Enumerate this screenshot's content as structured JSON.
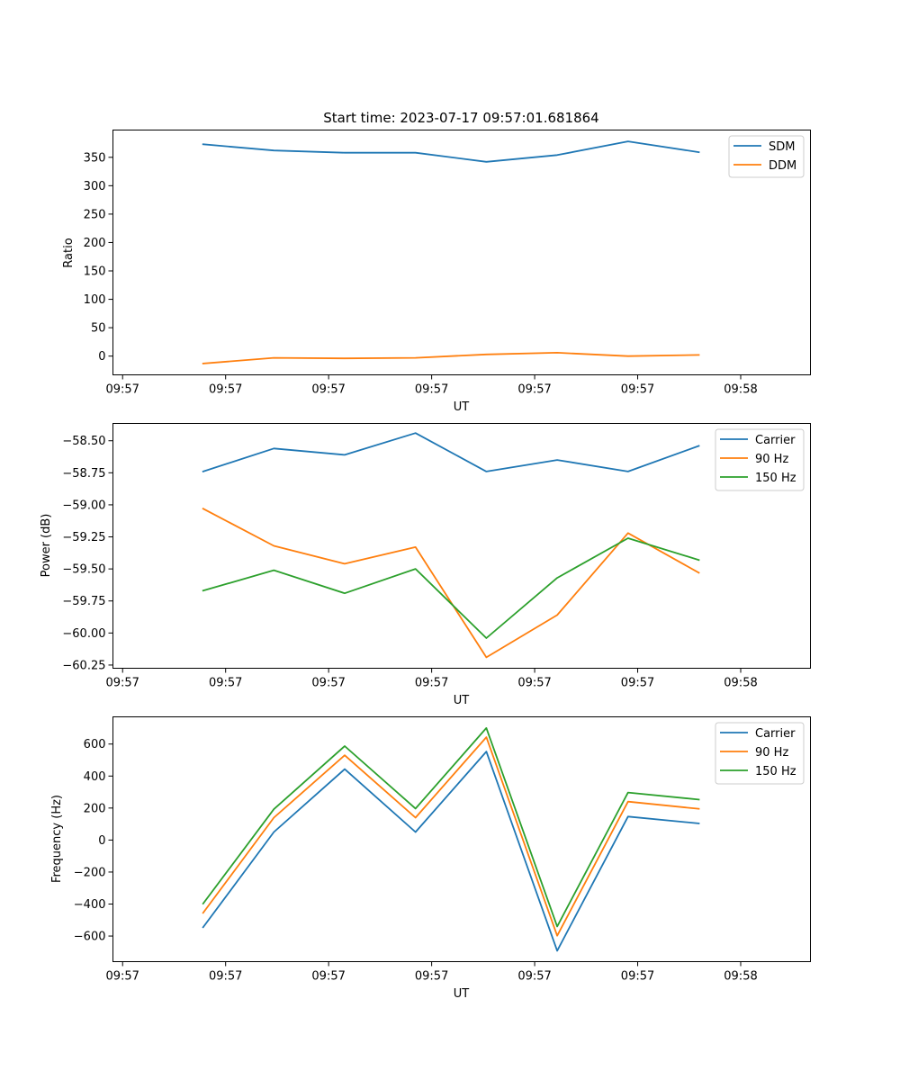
{
  "chart_data": [
    {
      "type": "line",
      "title": "Start time: 2023-07-17 09:57:01.681864",
      "xlabel": "UT",
      "ylabel": "Ratio",
      "x_tick_labels": [
        "09:57",
        "09:57",
        "09:57",
        "09:57",
        "09:57",
        "09:57",
        "09:58"
      ],
      "x": [
        0.49,
        1.15,
        1.81,
        2.47,
        3.13,
        3.79,
        4.45,
        5.11
      ],
      "xlim": [
        0,
        6
      ],
      "ylim": [
        -33,
        398
      ],
      "y_ticks": [
        0,
        50,
        100,
        150,
        200,
        250,
        300,
        350
      ],
      "legend_position": "top-right",
      "series": [
        {
          "name": "SDM",
          "color": "#1f77b4",
          "values": [
            373,
            362,
            358,
            358,
            342,
            354,
            378,
            359
          ]
        },
        {
          "name": "DDM",
          "color": "#ff7f0e",
          "values": [
            -13,
            -3,
            -4,
            -3,
            3,
            6,
            0,
            2
          ]
        }
      ]
    },
    {
      "type": "line",
      "title": "",
      "xlabel": "UT",
      "ylabel": "Power (dB)",
      "x_tick_labels": [
        "09:57",
        "09:57",
        "09:57",
        "09:57",
        "09:57",
        "09:57",
        "09:58"
      ],
      "x": [
        0.49,
        1.15,
        1.81,
        2.47,
        3.13,
        3.79,
        4.45,
        5.11
      ],
      "xlim": [
        0,
        6
      ],
      "ylim": [
        -60.275,
        -58.365
      ],
      "y_ticks": [
        -60.25,
        -60.0,
        -59.75,
        -59.5,
        -59.25,
        -59.0,
        -58.75,
        -58.5
      ],
      "y_tick_labels": [
        "−60.25",
        "−60.00",
        "−59.75",
        "−59.50",
        "−59.25",
        "−59.00",
        "−58.75",
        "−58.50"
      ],
      "legend_position": "top-right",
      "series": [
        {
          "name": "Carrier",
          "color": "#1f77b4",
          "values": [
            -58.74,
            -58.56,
            -58.61,
            -58.44,
            -58.74,
            -58.65,
            -58.74,
            -58.54
          ]
        },
        {
          "name": "90 Hz",
          "color": "#ff7f0e",
          "values": [
            -59.03,
            -59.32,
            -59.46,
            -59.33,
            -60.19,
            -59.86,
            -59.22,
            -59.53
          ]
        },
        {
          "name": "150 Hz",
          "color": "#2ca02c",
          "values": [
            -59.67,
            -59.51,
            -59.69,
            -59.5,
            -60.04,
            -59.57,
            -59.26,
            -59.43
          ]
        }
      ]
    },
    {
      "type": "line",
      "title": "",
      "xlabel": "UT",
      "ylabel": "Frequency (Hz)",
      "x_tick_labels": [
        "09:57",
        "09:57",
        "09:57",
        "09:57",
        "09:57",
        "09:57",
        "09:58"
      ],
      "x": [
        0.49,
        1.15,
        1.81,
        2.47,
        3.13,
        3.79,
        4.45,
        5.11
      ],
      "xlim": [
        0,
        6
      ],
      "ylim": [
        -760,
        770
      ],
      "y_ticks": [
        -600,
        -400,
        -200,
        0,
        200,
        400,
        600
      ],
      "y_tick_labels": [
        "−600",
        "−400",
        "−200",
        "0",
        "200",
        "400",
        "600"
      ],
      "legend_position": "top-right",
      "series": [
        {
          "name": "Carrier",
          "color": "#1f77b4",
          "values": [
            -545,
            50,
            443,
            50,
            553,
            -692,
            147,
            104
          ]
        },
        {
          "name": "90 Hz",
          "color": "#ff7f0e",
          "values": [
            -455,
            140,
            530,
            140,
            643,
            -598,
            240,
            195
          ]
        },
        {
          "name": "150 Hz",
          "color": "#2ca02c",
          "values": [
            -397,
            193,
            587,
            197,
            700,
            -540,
            297,
            253
          ]
        }
      ]
    }
  ]
}
